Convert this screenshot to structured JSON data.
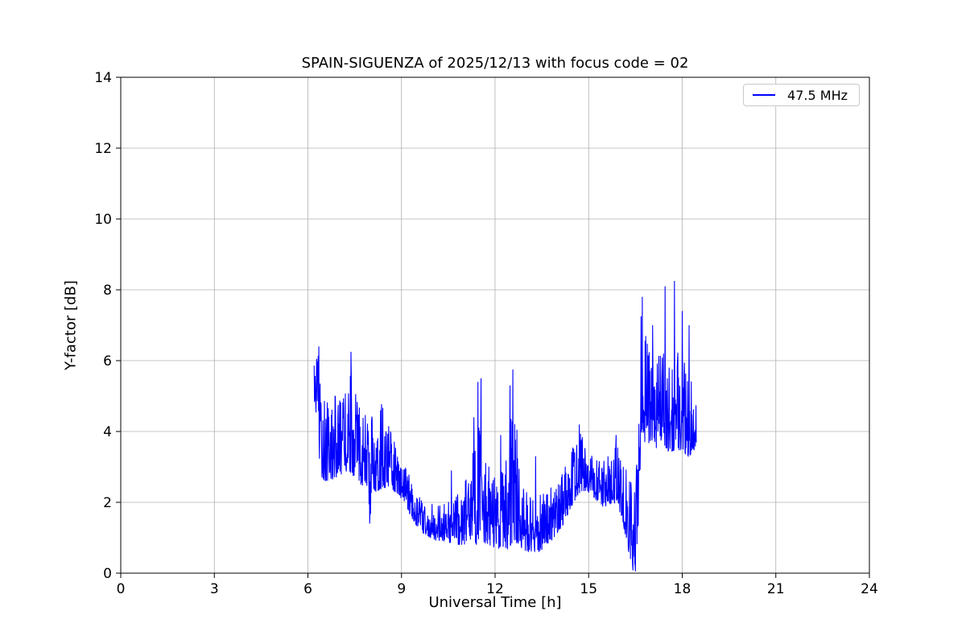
{
  "chart_data": {
    "type": "line",
    "title": "SPAIN-SIGUENZA of 2025/12/13 with focus code = 02",
    "xlabel": "Universal Time [h]",
    "ylabel": "Y-factor [dB]",
    "xlim": [
      0,
      24
    ],
    "ylim": [
      0,
      14
    ],
    "xticks": [
      0,
      3,
      6,
      9,
      12,
      15,
      18,
      21,
      24
    ],
    "yticks": [
      0,
      2,
      4,
      6,
      8,
      10,
      12,
      14
    ],
    "grid": true,
    "grid_color": "#b0b0b0",
    "axes_color": "#000000",
    "background_color": "#ffffff",
    "legend": {
      "position": "upper-right"
    },
    "series": [
      {
        "name": "47.5 MHz",
        "color": "#0000ff",
        "x_start": 6.2,
        "x_end": 18.45,
        "sample_step": 0.01,
        "noise_seed": 12345,
        "noise_power": 1.7,
        "envelope": [
          [
            6.2,
            4.7,
            5.9
          ],
          [
            6.3,
            4.4,
            6.1
          ],
          [
            6.35,
            2.8,
            6.4
          ],
          [
            6.5,
            2.6,
            5.2
          ],
          [
            6.7,
            2.6,
            5.0
          ],
          [
            6.9,
            2.7,
            5.1
          ],
          [
            7.1,
            2.8,
            5.0
          ],
          [
            7.3,
            2.9,
            5.2
          ],
          [
            7.4,
            2.8,
            5.9
          ],
          [
            7.5,
            2.7,
            5.3
          ],
          [
            7.7,
            2.5,
            4.7
          ],
          [
            7.9,
            2.4,
            4.5
          ],
          [
            8.0,
            1.5,
            4.4
          ],
          [
            8.05,
            2.3,
            4.5
          ],
          [
            8.2,
            2.3,
            4.8
          ],
          [
            8.4,
            2.4,
            4.9
          ],
          [
            8.6,
            2.4,
            4.7
          ],
          [
            8.75,
            2.3,
            4.0
          ],
          [
            8.9,
            2.2,
            3.2
          ],
          [
            9.1,
            2.0,
            3.0
          ],
          [
            9.3,
            1.6,
            2.7
          ],
          [
            9.5,
            1.3,
            2.3
          ],
          [
            9.7,
            1.1,
            2.1
          ],
          [
            9.9,
            1.0,
            2.0
          ],
          [
            10.1,
            0.9,
            1.9
          ],
          [
            10.4,
            0.9,
            2.0
          ],
          [
            10.7,
            0.8,
            2.2
          ],
          [
            11.0,
            0.8,
            2.5
          ],
          [
            11.2,
            0.8,
            3.0
          ],
          [
            11.4,
            0.8,
            4.0
          ],
          [
            11.5,
            0.9,
            5.0
          ],
          [
            11.6,
            0.8,
            3.8
          ],
          [
            11.8,
            0.8,
            3.2
          ],
          [
            12.0,
            0.7,
            2.8
          ],
          [
            12.2,
            0.7,
            3.0
          ],
          [
            12.4,
            0.7,
            3.8
          ],
          [
            12.55,
            0.8,
            5.2
          ],
          [
            12.7,
            0.8,
            3.8
          ],
          [
            12.85,
            0.7,
            2.6
          ],
          [
            13.0,
            0.6,
            2.3
          ],
          [
            13.2,
            0.6,
            2.1
          ],
          [
            13.4,
            0.6,
            2.2
          ],
          [
            13.6,
            0.7,
            2.3
          ],
          [
            13.8,
            0.9,
            2.5
          ],
          [
            14.0,
            1.1,
            2.7
          ],
          [
            14.2,
            1.4,
            3.0
          ],
          [
            14.4,
            1.8,
            3.4
          ],
          [
            14.6,
            2.1,
            3.8
          ],
          [
            14.75,
            2.3,
            4.0
          ],
          [
            14.9,
            2.3,
            3.7
          ],
          [
            15.1,
            2.2,
            3.5
          ],
          [
            15.3,
            2.0,
            3.3
          ],
          [
            15.5,
            1.8,
            3.2
          ],
          [
            15.7,
            1.9,
            3.5
          ],
          [
            15.9,
            2.0,
            3.7
          ],
          [
            16.1,
            1.4,
            3.3
          ],
          [
            16.3,
            0.5,
            2.9
          ],
          [
            16.45,
            0.1,
            2.3
          ],
          [
            16.55,
            0.4,
            3.2
          ],
          [
            16.65,
            2.5,
            6.0
          ],
          [
            16.8,
            3.6,
            6.8
          ],
          [
            17.0,
            3.7,
            6.5
          ],
          [
            17.2,
            3.5,
            6.3
          ],
          [
            17.4,
            3.6,
            6.6
          ],
          [
            17.6,
            3.4,
            6.0
          ],
          [
            17.8,
            3.5,
            6.4
          ],
          [
            18.0,
            3.4,
            6.2
          ],
          [
            18.2,
            3.3,
            5.8
          ],
          [
            18.35,
            3.4,
            5.6
          ],
          [
            18.45,
            3.6,
            5.4
          ]
        ],
        "spikes": [
          [
            6.35,
            6.4
          ],
          [
            7.38,
            6.25
          ],
          [
            7.98,
            1.4
          ],
          [
            10.6,
            2.9
          ],
          [
            11.32,
            4.4
          ],
          [
            11.45,
            5.4
          ],
          [
            11.55,
            5.5
          ],
          [
            12.18,
            3.9
          ],
          [
            12.48,
            5.3
          ],
          [
            12.57,
            5.75
          ],
          [
            12.7,
            4.05
          ],
          [
            13.3,
            3.3
          ],
          [
            14.7,
            4.2
          ],
          [
            15.88,
            3.9
          ],
          [
            16.42,
            0.08
          ],
          [
            16.5,
            0.05
          ],
          [
            16.68,
            7.25
          ],
          [
            16.72,
            7.8
          ],
          [
            17.05,
            7.0
          ],
          [
            17.45,
            8.1
          ],
          [
            17.75,
            8.25
          ],
          [
            18.0,
            7.4
          ],
          [
            18.22,
            7.0
          ]
        ]
      }
    ]
  }
}
